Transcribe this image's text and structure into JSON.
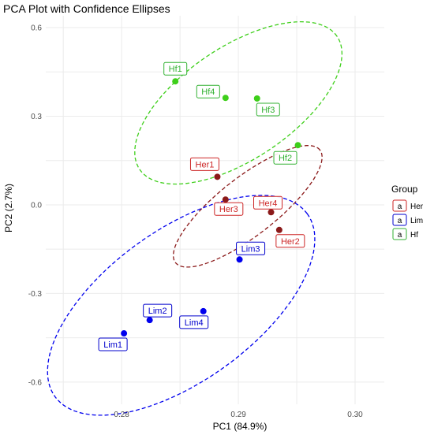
{
  "chart_data": {
    "type": "scatter",
    "title": "PCA Plot with Confidence Ellipses",
    "xlabel": "PC1 (84.9%)",
    "ylabel": "PC2 (2.7%)",
    "xlim": [
      0.2735,
      0.3025
    ],
    "ylim": [
      -0.675,
      0.64
    ],
    "x_ticks": [
      0.28,
      0.29,
      0.3
    ],
    "x_tick_labels": [
      "0.28",
      "0.29",
      "0.30"
    ],
    "y_ticks": [
      -0.6,
      -0.3,
      0.0,
      0.3,
      0.6
    ],
    "y_tick_labels": [
      "-0.6",
      "-0.3",
      "0.0",
      "0.3",
      "0.6"
    ],
    "grid": true,
    "legend_position": "right",
    "legend_title": "Group",
    "series": [
      {
        "name": "Her",
        "color": "#8b1a1a",
        "label_color": "#cd2626",
        "points": [
          {
            "label": "Her1",
            "x": 0.2882,
            "y": 0.095
          },
          {
            "label": "Her2",
            "x": 0.2935,
            "y": -0.085
          },
          {
            "label": "Her3",
            "x": 0.2889,
            "y": 0.018
          },
          {
            "label": "Her4",
            "x": 0.2928,
            "y": -0.025
          }
        ],
        "ellipse": {
          "cx": 0.2908,
          "cy": -0.005,
          "rx": 0.00785,
          "ry": 0.098,
          "angle_deg": 38
        }
      },
      {
        "name": "Lim",
        "color": "#0000ee",
        "label_color": "#0000cd",
        "points": [
          {
            "label": "Lim1",
            "x": 0.2802,
            "y": -0.435
          },
          {
            "label": "Lim2",
            "x": 0.2824,
            "y": -0.39
          },
          {
            "label": "Lim3",
            "x": 0.2901,
            "y": -0.185
          },
          {
            "label": "Lim4",
            "x": 0.287,
            "y": -0.36
          }
        ],
        "ellipse": {
          "cx": 0.2851,
          "cy": -0.34,
          "rx": 0.01335,
          "ry": 0.255,
          "angle_deg": 36
        }
      },
      {
        "name": "Hf",
        "color": "#3ecf1a",
        "label_color": "#33b233",
        "points": [
          {
            "label": "Hf1",
            "x": 0.2846,
            "y": 0.418
          },
          {
            "label": "Hf2",
            "x": 0.2951,
            "y": 0.202
          },
          {
            "label": "Hf3",
            "x": 0.2916,
            "y": 0.36
          },
          {
            "label": "Hf4",
            "x": 0.2889,
            "y": 0.362
          }
        ],
        "ellipse": {
          "cx": 0.29,
          "cy": 0.345,
          "rx": 0.0102,
          "ry": 0.19,
          "angle_deg": 34
        }
      }
    ]
  }
}
